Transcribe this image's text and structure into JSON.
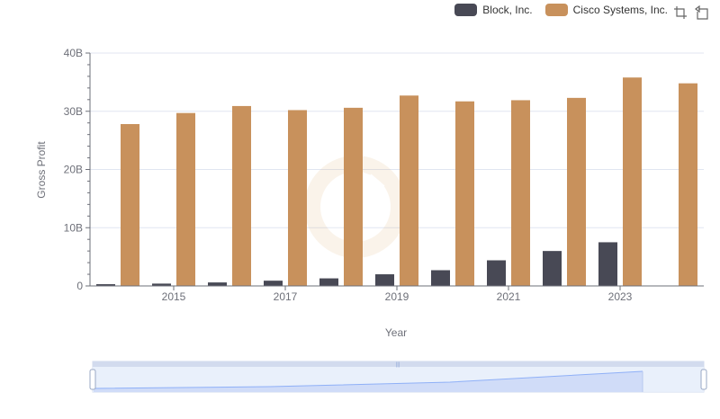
{
  "chart_data": {
    "type": "bar",
    "xlabel": "Year",
    "ylabel": "Gross Profit",
    "categories": [
      "2014",
      "2015",
      "2016",
      "2017",
      "2018",
      "2019",
      "2020",
      "2021",
      "2022",
      "2023",
      "2024"
    ],
    "x_tick_labels": [
      "2015",
      "2017",
      "2019",
      "2021",
      "2023"
    ],
    "y_tick_labels": [
      "0",
      "10B",
      "20B",
      "30B",
      "40B"
    ],
    "ylim": [
      0,
      40000000000
    ],
    "grid": true,
    "legend_position": "top-right",
    "series": [
      {
        "name": "Block, Inc.",
        "color": "#484955",
        "values": [
          300000000,
          400000000,
          600000000,
          900000000,
          1300000000,
          2000000000,
          2700000000,
          4400000000,
          6000000000,
          7500000000,
          null
        ]
      },
      {
        "name": "Cisco Systems, Inc.",
        "color": "#c8915c",
        "values": [
          27800000000,
          29700000000,
          30900000000,
          30200000000,
          30600000000,
          32700000000,
          31700000000,
          31900000000,
          32300000000,
          35800000000,
          34800000000
        ]
      }
    ]
  },
  "toolbox": {
    "zoom_icon": "zoom-icon",
    "restore_icon": "restore-icon"
  },
  "datazoom": {
    "start_percent": 0,
    "end_percent": 100,
    "accent": "#8fb0f7"
  }
}
